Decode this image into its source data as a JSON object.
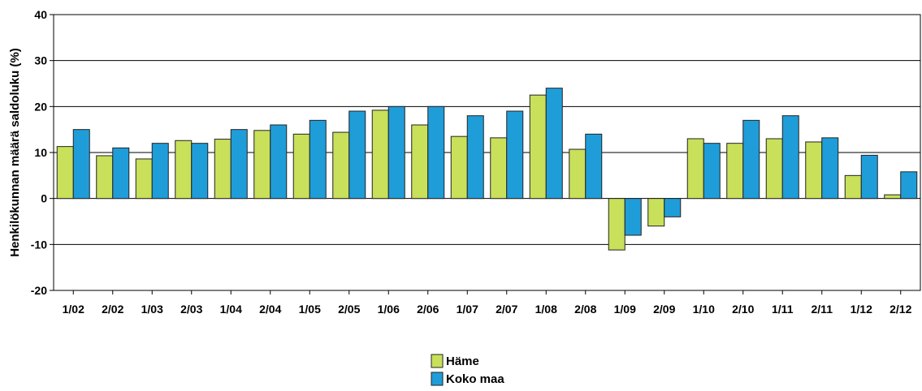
{
  "chart_data": {
    "type": "bar",
    "title": "",
    "xlabel": "",
    "ylabel": "Henkilökunnan määrä saldoluku (%)",
    "ylim": [
      -20,
      40
    ],
    "yticks": [
      -20,
      -10,
      0,
      10,
      20,
      30,
      40
    ],
    "grid": true,
    "legend_position": "bottom-center",
    "categories": [
      "1/02",
      "2/02",
      "1/03",
      "2/03",
      "1/04",
      "2/04",
      "1/05",
      "2/05",
      "1/06",
      "2/06",
      "1/07",
      "2/07",
      "1/08",
      "2/08",
      "1/09",
      "2/09",
      "1/10",
      "2/10",
      "1/11",
      "2/11",
      "1/12",
      "2/12"
    ],
    "series": [
      {
        "name": "Häme",
        "color": "#c8e05a",
        "values": [
          11.3,
          9.3,
          8.6,
          12.6,
          12.9,
          14.8,
          14.0,
          14.4,
          19.2,
          16.0,
          13.5,
          13.2,
          22.5,
          10.7,
          -11.2,
          -6.0,
          13.0,
          12.0,
          13.0,
          12.3,
          5.0,
          0.8
        ]
      },
      {
        "name": "Koko maa",
        "color": "#1f9dd9",
        "values": [
          15.0,
          11.0,
          12.0,
          12.0,
          15.0,
          16.0,
          17.0,
          19.0,
          20.0,
          20.0,
          18.0,
          19.0,
          24.0,
          14.0,
          -8.0,
          -4.0,
          12.0,
          17.0,
          18.0,
          13.2,
          9.4,
          5.8
        ]
      }
    ]
  }
}
